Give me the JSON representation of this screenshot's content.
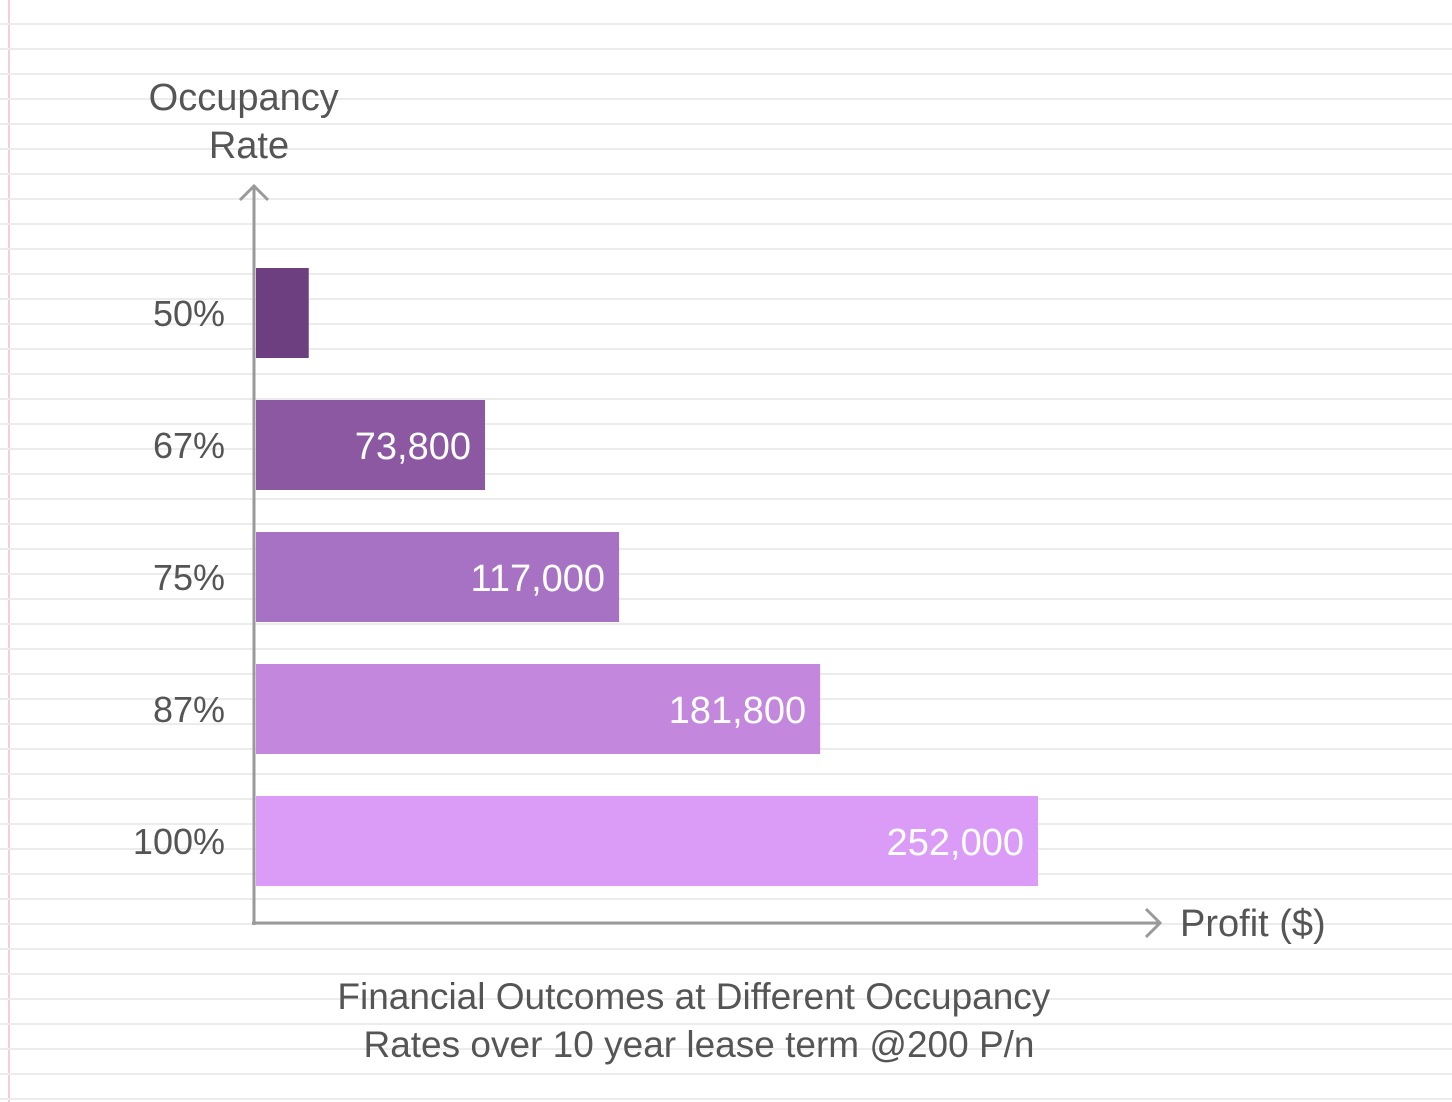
{
  "chart_data": {
    "type": "bar",
    "orientation": "horizontal",
    "title": "Financial Outcomes at Different Occupancy Rates over 10 year lease term @200 P/n",
    "title_lines": [
      "Financial Outcomes at Different Occupancy",
      "Rates over 10 year lease term @200 P/n"
    ],
    "ylabel_lines": [
      "Occupancy",
      "Rate"
    ],
    "xlabel": "Profit ($)",
    "categories": [
      "50%",
      "67%",
      "75%",
      "87%",
      "100%"
    ],
    "values": [
      17000,
      73800,
      117000,
      181800,
      252000
    ],
    "data_labels": [
      "",
      "73,800",
      "117,000",
      "181,800",
      "252,000"
    ],
    "colors": [
      "#6e3f80",
      "#8b58a1",
      "#a772c4",
      "#c387de",
      "#db9cf8"
    ],
    "grid": false,
    "legend": "none"
  }
}
